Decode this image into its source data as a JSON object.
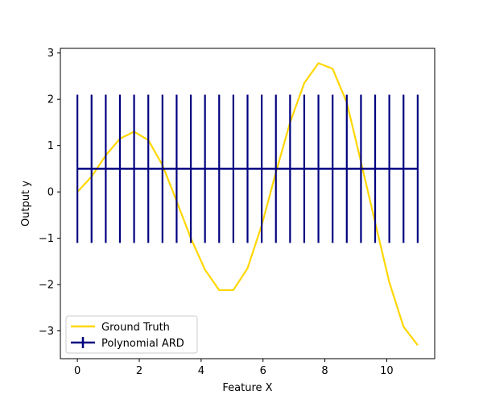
{
  "chart_data": {
    "type": "line",
    "title": "",
    "xlabel": "Feature X",
    "ylabel": "Output y",
    "xlim": [
      -0.55,
      11.55
    ],
    "ylim": [
      -3.6,
      3.1
    ],
    "xticks": [
      0,
      2,
      4,
      6,
      8,
      10
    ],
    "yticks": [
      -3,
      -2,
      -1,
      0,
      1,
      2,
      3
    ],
    "xtick_labels": [
      "0",
      "2",
      "4",
      "6",
      "8",
      "10"
    ],
    "ytick_labels": [
      "−3",
      "−2",
      "−1",
      "0",
      "1",
      "2",
      "3"
    ],
    "grid": false,
    "legend_position": "lower-left",
    "series": [
      {
        "name": "Ground Truth",
        "color": "#ffd700",
        "x": [
          0,
          0.458,
          0.917,
          1.375,
          1.833,
          2.292,
          2.75,
          3.208,
          3.667,
          4.125,
          4.583,
          5.042,
          5.5,
          5.958,
          6.417,
          6.875,
          7.333,
          7.792,
          8.25,
          8.708,
          9.167,
          9.625,
          10.083,
          10.542,
          11
        ],
        "y": [
          0.0,
          0.33,
          0.79,
          1.15,
          1.3,
          1.12,
          0.58,
          -0.2,
          -1.0,
          -1.68,
          -2.12,
          -2.12,
          -1.65,
          -0.72,
          0.42,
          1.5,
          2.35,
          2.78,
          2.66,
          1.93,
          0.65,
          -0.66,
          -1.95,
          -2.91,
          -3.31
        ]
      },
      {
        "name": "Polynomial ARD",
        "color": "#000080",
        "x": [
          0,
          0.458,
          0.917,
          1.375,
          1.833,
          2.292,
          2.75,
          3.208,
          3.667,
          4.125,
          4.583,
          5.042,
          5.5,
          5.958,
          6.417,
          6.875,
          7.333,
          7.792,
          8.25,
          8.708,
          9.167,
          9.625,
          10.083,
          10.542,
          11
        ],
        "y": [
          0.5,
          0.5,
          0.5,
          0.5,
          0.5,
          0.5,
          0.5,
          0.5,
          0.5,
          0.5,
          0.5,
          0.5,
          0.5,
          0.5,
          0.5,
          0.5,
          0.5,
          0.5,
          0.5,
          0.5,
          0.5,
          0.5,
          0.5,
          0.5,
          0.5
        ],
        "yerr": 1.6
      }
    ]
  }
}
